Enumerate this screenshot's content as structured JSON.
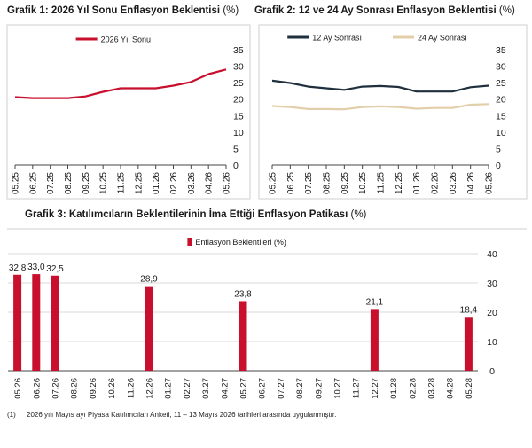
{
  "charts": {
    "chart1": {
      "title": "Grafik 1: 2026 Yıl Sonu Enflasyon Beklentisi",
      "unit": "(%)"
    },
    "chart2": {
      "title": "Grafik 2: 12 ve 24 Ay Sonrası Enflasyon Beklentisi",
      "unit": "(%)"
    },
    "chart3": {
      "title": "Grafik 3: Katılımcıların Beklentilerinin İma Ettiği Enflasyon Patikası",
      "unit": "(%)"
    }
  },
  "footnote": {
    "number": "(1)",
    "text": "2026 yılı Mayıs ayı Piyasa Katılımcıları Anketi, 11 – 13 Mayıs 2026 tarihleri arasında uygulanmıştır."
  },
  "chart_data": [
    {
      "id": "chart1",
      "type": "line",
      "title": "Grafik 1: 2026 Yıl Sonu Enflasyon Beklentisi (%)",
      "categories": [
        "05.25",
        "06.25",
        "07.25",
        "08.25",
        "09.25",
        "10.25",
        "11.25",
        "12.25",
        "01.26",
        "02.26",
        "03.26",
        "04.26",
        "05.26"
      ],
      "series": [
        {
          "name": "2026 Yıl Sonu",
          "color": "#c8102e",
          "values": [
            20.6,
            20.3,
            20.3,
            20.3,
            20.8,
            22.2,
            23.3,
            23.3,
            23.3,
            24.1,
            25.2,
            27.6,
            29.0
          ]
        }
      ],
      "yticks": [
        0,
        5,
        10,
        15,
        20,
        25,
        30,
        35
      ],
      "ylim": [
        0,
        35
      ],
      "yaxis_side": "right",
      "legend": "top-center",
      "grid": false
    },
    {
      "id": "chart2",
      "type": "line",
      "title": "Grafik 2: 12 ve 24 Ay Sonrası Enflasyon Beklentisi (%)",
      "categories": [
        "05.25",
        "06.25",
        "07.25",
        "08.25",
        "09.25",
        "10.25",
        "11.25",
        "12.25",
        "01.26",
        "02.26",
        "03.26",
        "04.26",
        "05.26"
      ],
      "series": [
        {
          "name": "12 Ay Sonrası",
          "color": "#1f2f3d",
          "values": [
            25.6,
            24.9,
            23.8,
            23.3,
            22.8,
            23.8,
            24.0,
            23.7,
            22.3,
            22.3,
            22.3,
            23.6,
            24.1
          ]
        },
        {
          "name": "24 Ay Sonrası",
          "color": "#e3ceaa",
          "values": [
            17.9,
            17.6,
            17.0,
            17.0,
            16.9,
            17.6,
            17.8,
            17.6,
            17.1,
            17.3,
            17.3,
            18.3,
            18.5
          ]
        }
      ],
      "yticks": [
        0,
        5,
        10,
        15,
        20,
        25,
        30,
        35
      ],
      "ylim": [
        0,
        35
      ],
      "yaxis_side": "right",
      "legend": "top-center",
      "grid": false
    },
    {
      "id": "chart3",
      "type": "bar",
      "title": "Grafik 3: Katılımcıların Beklentilerinin İma Ettiği Enflasyon Patikası (%)",
      "categories": [
        "05.26",
        "06.26",
        "07.26",
        "08.26",
        "09.26",
        "10.26",
        "11.26",
        "12.26",
        "01.27",
        "02.27",
        "03.27",
        "04.27",
        "05.27",
        "06.27",
        "07.27",
        "08.27",
        "09.27",
        "10.27",
        "11.27",
        "12.27",
        "01.28",
        "02.28",
        "03.28",
        "04.28",
        "05.28"
      ],
      "series": [
        {
          "name": "Enflasyon Beklentileri (%)",
          "color": "#c8102e",
          "values": [
            32.8,
            33.0,
            32.5,
            null,
            null,
            null,
            null,
            28.9,
            null,
            null,
            null,
            null,
            23.8,
            null,
            null,
            null,
            null,
            null,
            null,
            21.1,
            null,
            null,
            null,
            null,
            18.4
          ]
        }
      ],
      "data_labels": [
        "32,8",
        "33,0",
        "32,5",
        "",
        "",
        "",
        "",
        "28,9",
        "",
        "",
        "",
        "",
        "23,8",
        "",
        "",
        "",
        "",
        "",
        "",
        "21,1",
        "",
        "",
        "",
        "",
        "18,4"
      ],
      "yticks": [
        0,
        10,
        20,
        30,
        40
      ],
      "ylim": [
        0,
        40
      ],
      "yaxis_side": "right",
      "legend": "top-center",
      "grid": true
    }
  ]
}
